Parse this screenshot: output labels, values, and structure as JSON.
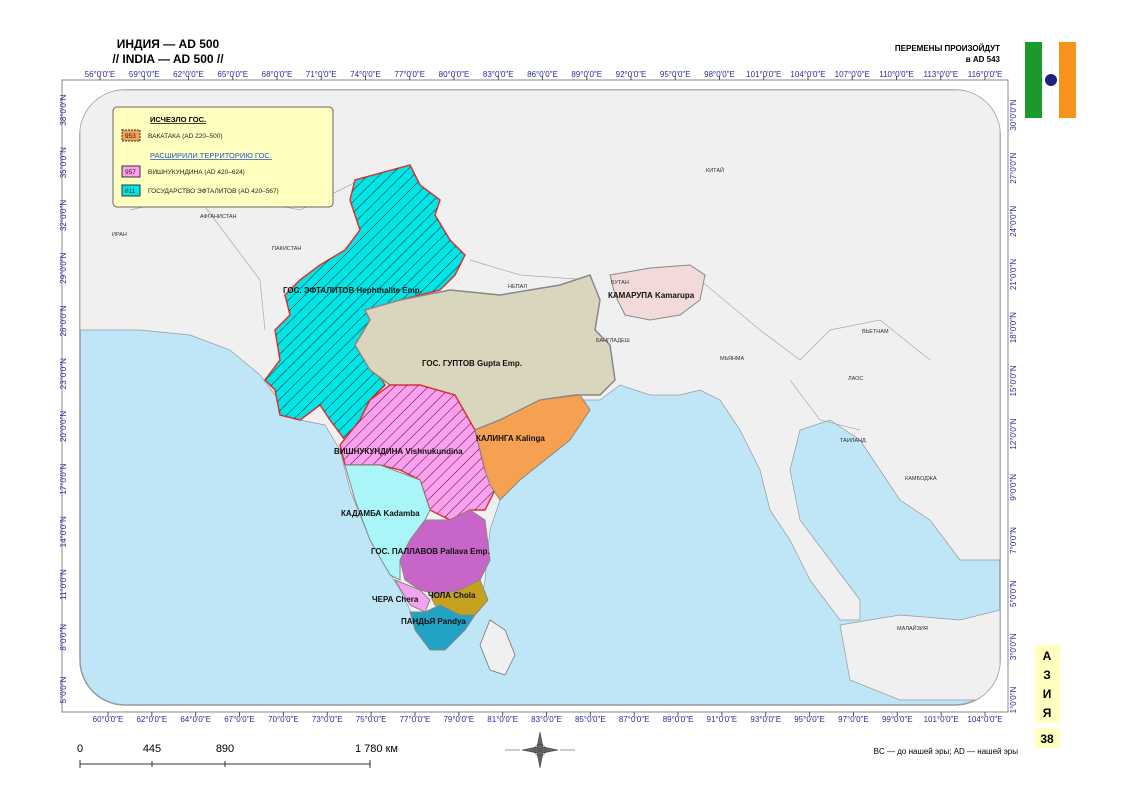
{
  "header": {
    "title_ru": "ИНДИЯ — AD 500",
    "title_en": "// INDIA — AD 500 //",
    "changes": "ПЕРЕМЕНЫ ПРОИЗОЙДУТ",
    "changes_date": "в AD 543"
  },
  "legend": {
    "vanished_heading": "ИСЧЕЗЛО ГОС.",
    "vanished": [
      {
        "code": "953",
        "label": "ВАКАТАКА (AD 220–500)"
      }
    ],
    "expanded_heading": "РАСШИРИЛИ ТЕРРИТОРИЮ ГОС.",
    "expanded": [
      {
        "code": "957",
        "label": "ВИШНУКУНДИНА (AD 420–624)"
      },
      {
        "code": "811",
        "label": "ГОСУДАРСТВО ЭФТАЛИТОВ (AD 420–567)"
      }
    ]
  },
  "top_ticks": [
    "56°0'0\"E",
    "59°0'0\"E",
    "62°0'0\"E",
    "65°0'0\"E",
    "68°0'0\"E",
    "71°0'0\"E",
    "74°0'0\"E",
    "77°0'0\"E",
    "80°0'0\"E",
    "83°0'0\"E",
    "86°0'0\"E",
    "89°0'0\"E",
    "92°0'0\"E",
    "95°0'0\"E",
    "98°0'0\"E",
    "101°0'0\"E",
    "104°0'0\"E",
    "107°0'0\"E",
    "110°0'0\"E",
    "113°0'0\"E",
    "116°0'0\"E"
  ],
  "bottom_ticks": [
    "60°0'0\"E",
    "62°0'0\"E",
    "64°0'0\"E",
    "67°0'0\"E",
    "70°0'0\"E",
    "73°0'0\"E",
    "75°0'0\"E",
    "77°0'0\"E",
    "79°0'0\"E",
    "81°0'0\"E",
    "83°0'0\"E",
    "85°0'0\"E",
    "87°0'0\"E",
    "89°0'0\"E",
    "91°0'0\"E",
    "93°0'0\"E",
    "95°0'0\"E",
    "97°0'0\"E",
    "99°0'0\"E",
    "101°0'0\"E",
    "104°0'0\"E"
  ],
  "left_ticks": [
    "38°0'0\"N",
    "35°0'0\"N",
    "32°0'0\"N",
    "29°0'0\"N",
    "26°0'0\"N",
    "23°0'0\"N",
    "20°0'0\"N",
    "17°0'0\"N",
    "14°0'0\"N",
    "11°0'0\"N",
    "8°0'0\"N",
    "5°0'0\"N"
  ],
  "right_ticks": [
    "30°0'0\"N",
    "27°0'0\"N",
    "24°0'0\"N",
    "21°0'0\"N",
    "18°0'0\"N",
    "15°0'0\"N",
    "12°0'0\"N",
    "9°0'0\"N",
    "7°0'0\"N",
    "5°0'0\"N",
    "3°0'0\"N",
    "1°0'0\"N"
  ],
  "countries": [
    "ИРАН",
    "АФГАНИСТАН",
    "ПАКИСТАН",
    "КИТАЙ",
    "НЕПАЛ",
    "БУТАН",
    "БАНГЛАДЕШ",
    "МЬЯНМА",
    "ВЬЕТНАМ",
    "ЛАОС",
    "ТАИЛАНД",
    "КАМБОДЖА",
    "МАЛАЙЗИЯ"
  ],
  "states": [
    "ГОС. ЭФТАЛИТОВ  Hephthalite Emp.",
    "ГОС. ГУПТОВ  Gupta Emp.",
    "ВИШНУКУНДИНА  Vishnukundina",
    "КАЛИНГА  Kalinga",
    "КАДАМБА  Kadamba",
    "ГОС. ПАЛЛАВОВ  Pallava Emp.",
    "ЧЕРА  Chera",
    "ЧОЛА  Chola",
    "ПАНДЬЯ  Pandya",
    "КАМАРУПА  Kamarupa"
  ],
  "scale": [
    "0",
    "445",
    "890",
    "1 780 км"
  ],
  "note": "BC — до нашей эры; AD — нашей эры",
  "side_tab": [
    "А",
    "З",
    "И",
    "Я"
  ],
  "page_number": "38"
}
